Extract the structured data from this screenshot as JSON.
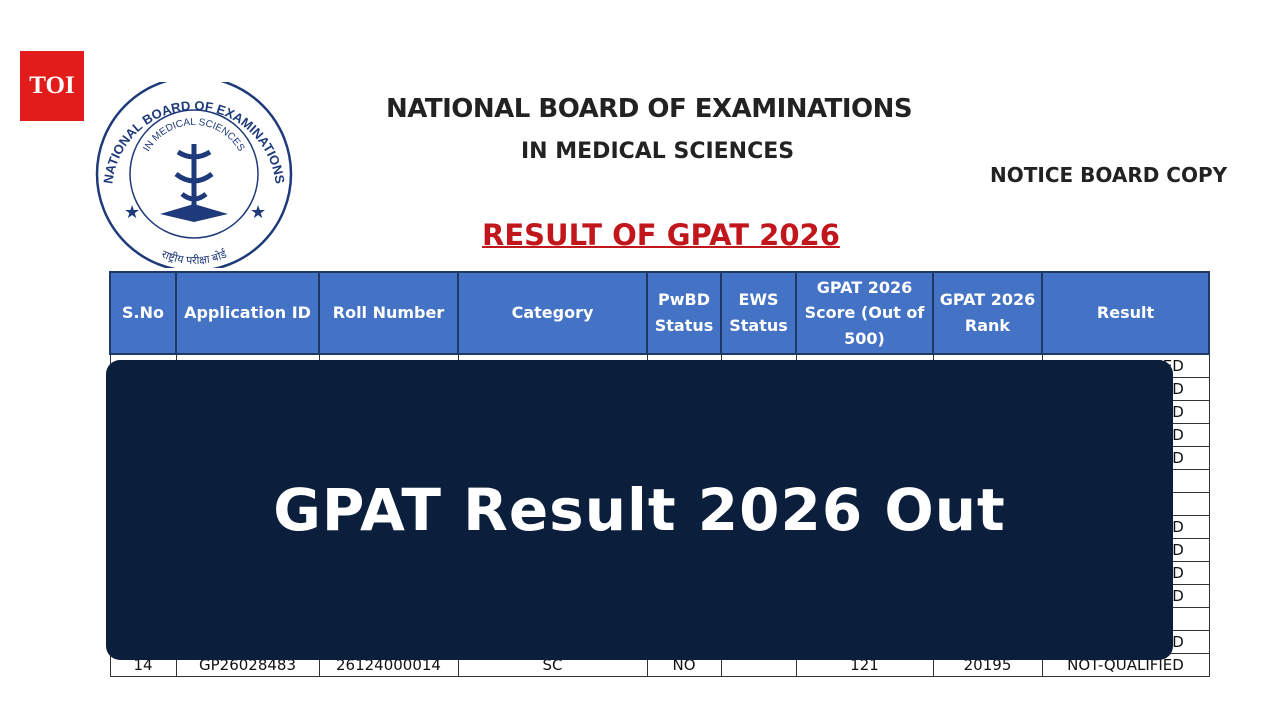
{
  "logo": "TOI",
  "emblem": {
    "outer_text": "NATIONAL BOARD OF EXAMINATIONS",
    "inner_text": "IN MEDICAL SCIENCES",
    "hindi_text": "राष्ट्रीय परीक्षा बोर्ड"
  },
  "header": {
    "title": "NATIONAL BOARD OF EXAMINATIONS",
    "subtitle": "IN MEDICAL SCIENCES",
    "notice": "NOTICE BOARD COPY",
    "result_title": "RESULT OF GPAT 2026"
  },
  "table": {
    "columns": [
      "S.No",
      "Application ID",
      "Roll Number",
      "Category",
      "PwBD Status",
      "EWS Status",
      "GPAT 2026 Score (Out of 500)",
      "GPAT 2026 Rank",
      "Result"
    ],
    "rows": [
      [
        null,
        null,
        null,
        null,
        null,
        null,
        null,
        null,
        "NOT-QUALIFIED"
      ],
      [
        null,
        null,
        null,
        null,
        null,
        null,
        null,
        null,
        "NOT-QUALIFIED"
      ],
      [
        null,
        null,
        null,
        null,
        null,
        null,
        null,
        null,
        "NOT-QUALIFIED"
      ],
      [
        null,
        null,
        null,
        null,
        null,
        null,
        null,
        null,
        "NOT-QUALIFIED"
      ],
      [
        null,
        null,
        null,
        null,
        null,
        null,
        null,
        null,
        "NOT-QUALIFIED"
      ],
      [
        null,
        null,
        null,
        null,
        null,
        null,
        null,
        null,
        null
      ],
      [
        null,
        null,
        null,
        null,
        null,
        null,
        null,
        null,
        null
      ],
      [
        null,
        null,
        null,
        null,
        null,
        null,
        null,
        null,
        "NOT-QUALIFIED"
      ],
      [
        null,
        null,
        null,
        null,
        null,
        null,
        null,
        null,
        "NOT-QUALIFIED"
      ],
      [
        null,
        null,
        null,
        null,
        null,
        null,
        null,
        null,
        "NOT-QUALIFIED"
      ],
      [
        null,
        null,
        null,
        null,
        null,
        null,
        null,
        null,
        "NOT-QUALIFIED"
      ],
      [
        null,
        null,
        null,
        null,
        null,
        null,
        null,
        null,
        null
      ],
      [
        null,
        null,
        null,
        null,
        null,
        null,
        null,
        null,
        "NOT-QUALIFIED"
      ],
      [
        "14",
        "GP26028483",
        "26124000014",
        "SC",
        "NO",
        null,
        "121",
        "20195",
        "NOT-QUALIFIED"
      ]
    ]
  },
  "overlay": {
    "headline": "GPAT Result 2026 Out"
  }
}
